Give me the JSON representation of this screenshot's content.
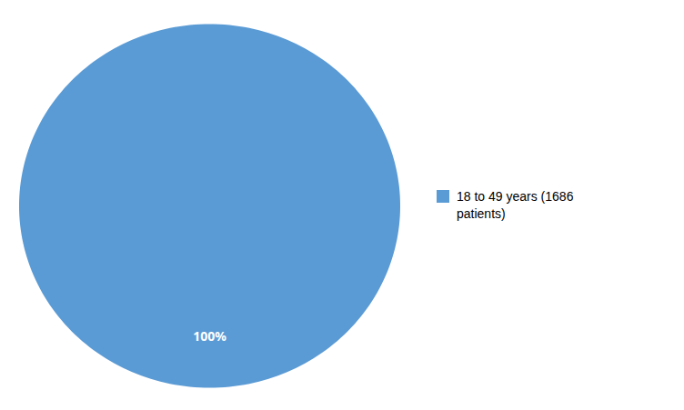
{
  "chart_data": {
    "type": "pie",
    "categories": [
      "18 to 49 years (1686\npatients)"
    ],
    "values": [
      100
    ],
    "value_labels": [
      "100%"
    ],
    "data_labels": true,
    "colors": [
      "#5B9BD5"
    ],
    "legend": "right"
  }
}
